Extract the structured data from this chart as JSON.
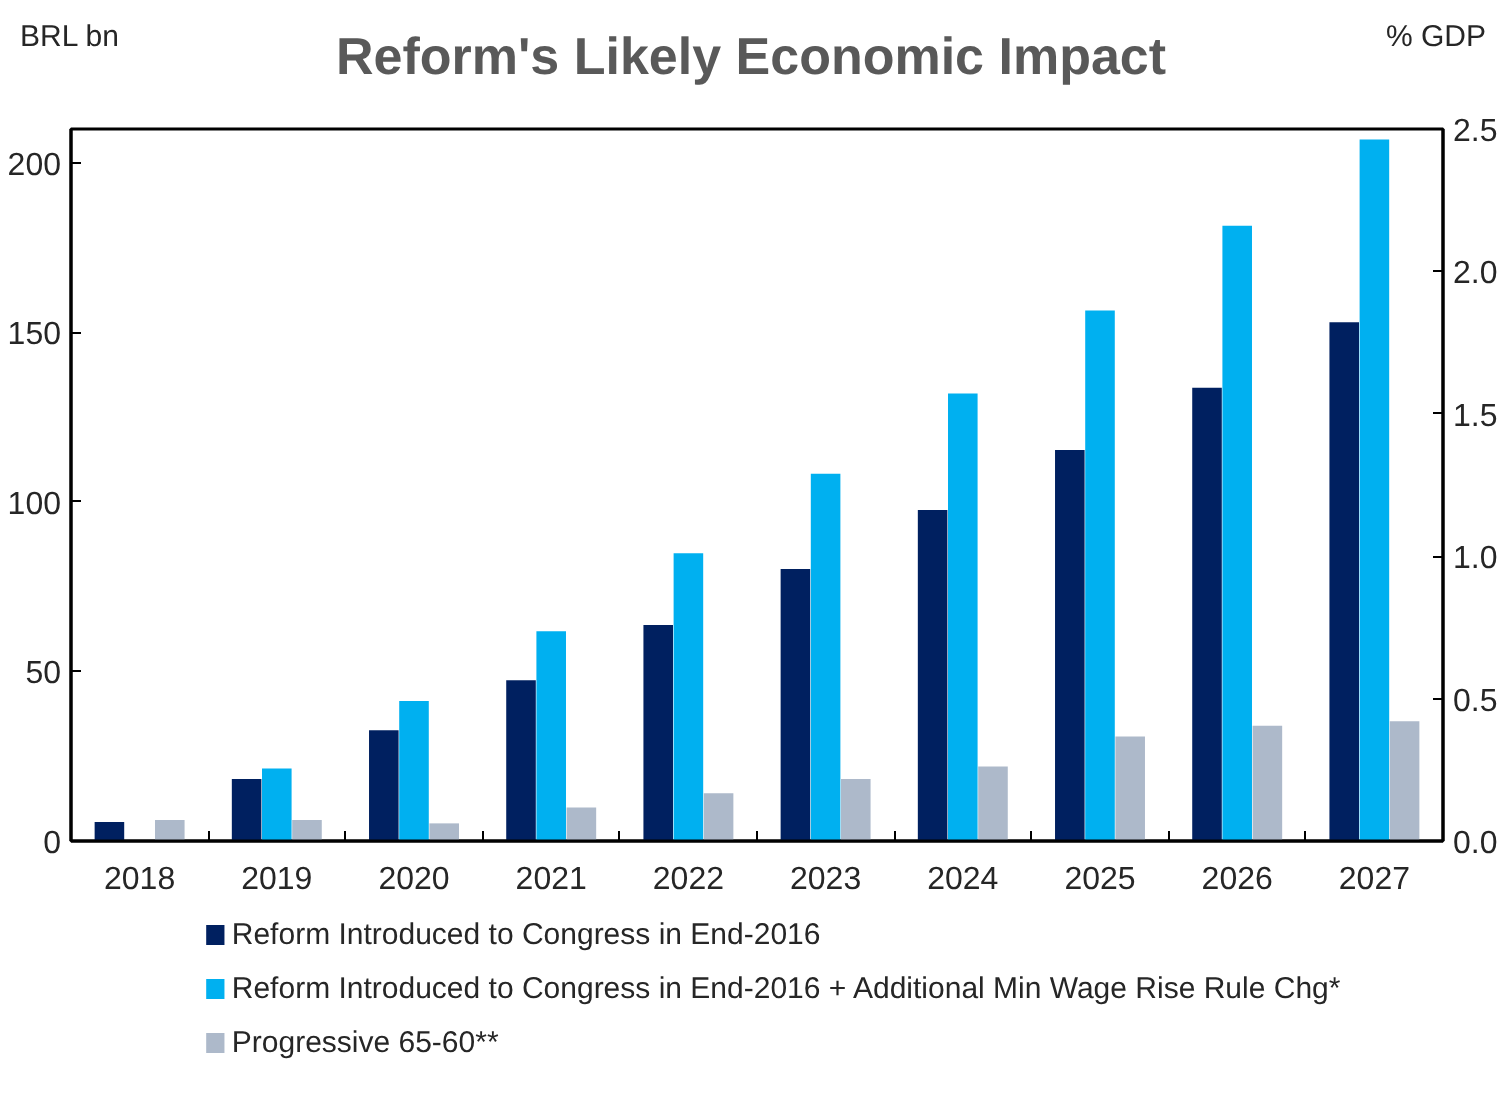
{
  "chart_data": {
    "type": "bar",
    "title": "Reform's Likely Economic Impact",
    "ylabel": "BRL bn",
    "y2label": "% GDP",
    "categories": [
      "2018",
      "2019",
      "2020",
      "2021",
      "2022",
      "2023",
      "2024",
      "2025",
      "2026",
      "2027"
    ],
    "series": [
      {
        "name": "Reform Introduced to Congress in End-2016",
        "color": "#002060",
        "values": [
          5.6,
          18.3,
          32.7,
          47.4,
          63.7,
          80.2,
          97.6,
          115.3,
          133.7,
          153
        ]
      },
      {
        "name": "Reform Introduced to Congress in End-2016 + Additional Min Wage Rise Rule Chg*",
        "color": "#00b0f0",
        "values": [
          null,
          21.4,
          41.3,
          61.9,
          84.9,
          108.3,
          132,
          156.5,
          181.5,
          206.9
        ]
      },
      {
        "name": "Progressive 65-60**",
        "color": "#adb9ca",
        "values": [
          6.2,
          6.2,
          5.2,
          9.9,
          14.1,
          18.3,
          22,
          30.8,
          34,
          35.3
        ]
      }
    ],
    "ylim": [
      0,
      210
    ],
    "yticks": [
      0,
      50,
      100,
      150,
      200
    ],
    "y2lim": [
      0,
      2.5
    ],
    "y2ticks": [
      {
        "value": 0,
        "label": "0.0"
      },
      {
        "value": 0.5,
        "label": "0.5"
      },
      {
        "value": 1,
        "label": "1.0"
      },
      {
        "value": 1.5,
        "label": "1.5"
      },
      {
        "value": 2,
        "label": "2.0"
      },
      {
        "value": 2.5,
        "label": "2.5"
      }
    ],
    "grid": false,
    "legend": "bottom"
  }
}
